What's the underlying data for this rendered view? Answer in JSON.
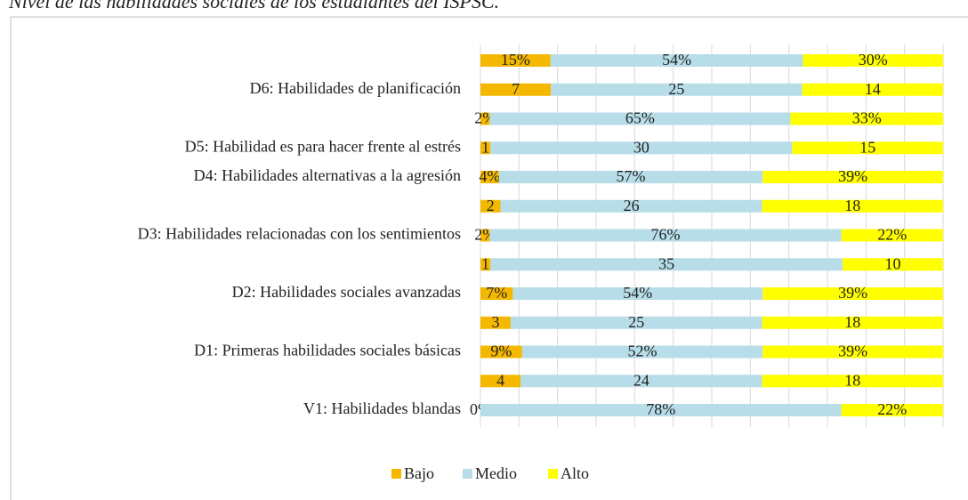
{
  "chart_data": {
    "type": "bar",
    "orientation": "horizontal",
    "stacked": "percent",
    "title": "Nivel de las habilidades sociales de los estudiantes del ISPSC.",
    "categories": [
      null,
      "D6: Habilidades de planificación",
      null,
      "D5: Habilidad es para hacer frente al estrés",
      "D4: Habilidades alternativas a la agresión",
      null,
      "D3: Habilidades relacionadas con los sentimientos",
      null,
      "D2: Habilidades sociales avanzadas",
      null,
      "D1: Primeras habilidades sociales básicas",
      null,
      "V1: Habilidades blandas"
    ],
    "series": [
      {
        "name": "Bajo",
        "color": "#f5b800",
        "values": [
          15,
          7,
          2,
          1,
          4,
          2,
          2,
          1,
          7,
          3,
          9,
          4,
          0
        ],
        "value_labels": [
          "15%",
          "7",
          "2%",
          "1",
          "4%",
          "2",
          "2%",
          "1",
          "7%",
          "3",
          "9%",
          "4",
          "0%"
        ]
      },
      {
        "name": "Medio",
        "color": "#b7dde8",
        "values": [
          54,
          25,
          65,
          30,
          57,
          26,
          76,
          35,
          54,
          25,
          52,
          24,
          78
        ],
        "value_labels": [
          "54%",
          "25",
          "65%",
          "30",
          "57%",
          "26",
          "76%",
          "35",
          "54%",
          "25",
          "52%",
          "24",
          "78%"
        ]
      },
      {
        "name": "Alto",
        "color": "#ffff00",
        "values": [
          30,
          14,
          33,
          15,
          39,
          18,
          22,
          10,
          39,
          18,
          39,
          18,
          22
        ],
        "value_labels": [
          "30%",
          "14",
          "33%",
          "15",
          "39%",
          "18",
          "22%",
          "10",
          "39%",
          "18",
          "39%",
          "18",
          "22%"
        ]
      }
    ],
    "legend": "bottom",
    "grid": true
  }
}
